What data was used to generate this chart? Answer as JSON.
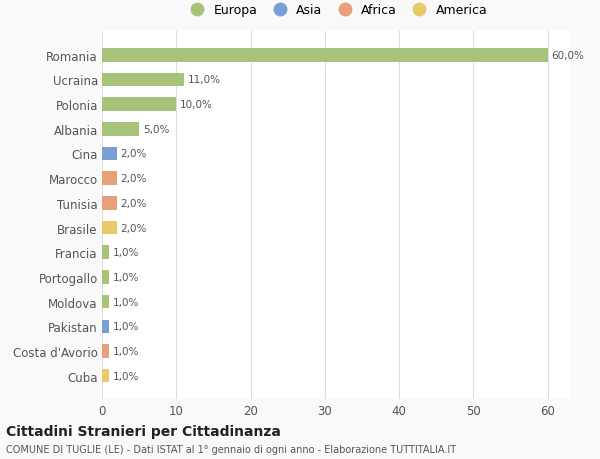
{
  "categories": [
    "Cuba",
    "Costa d'Avorio",
    "Pakistan",
    "Moldova",
    "Portogallo",
    "Francia",
    "Brasile",
    "Tunisia",
    "Marocco",
    "Cina",
    "Albania",
    "Polonia",
    "Ucraina",
    "Romania"
  ],
  "values": [
    1.0,
    1.0,
    1.0,
    1.0,
    1.0,
    1.0,
    2.0,
    2.0,
    2.0,
    2.0,
    5.0,
    10.0,
    11.0,
    60.0
  ],
  "labels": [
    "1,0%",
    "1,0%",
    "1,0%",
    "1,0%",
    "1,0%",
    "1,0%",
    "2,0%",
    "2,0%",
    "2,0%",
    "2,0%",
    "5,0%",
    "10,0%",
    "11,0%",
    "60,0%"
  ],
  "colors": [
    "#e8c96b",
    "#e8a07a",
    "#7a9fd4",
    "#a8c47a",
    "#a8c47a",
    "#a8c47a",
    "#e8c96b",
    "#e8a07a",
    "#e8a07a",
    "#7a9fd4",
    "#a8c47a",
    "#a8c47a",
    "#a8c47a",
    "#a8c47a"
  ],
  "continent": [
    "America",
    "Africa",
    "Asia",
    "Europa",
    "Europa",
    "Europa",
    "America",
    "Africa",
    "Africa",
    "Asia",
    "Europa",
    "Europa",
    "Europa",
    "Europa"
  ],
  "legend_labels": [
    "Europa",
    "Asia",
    "Africa",
    "America"
  ],
  "legend_colors": [
    "#a8c47a",
    "#7a9fd4",
    "#e8a07a",
    "#e8c96b"
  ],
  "title_main": "Cittadini Stranieri per Cittadinanza",
  "title_sub": "COMUNE DI TUGLIE (LE) - Dati ISTAT al 1° gennaio di ogni anno - Elaborazione TUTTITALIA.IT",
  "xlim": [
    0,
    63
  ],
  "xticks": [
    0,
    10,
    20,
    30,
    40,
    50,
    60
  ],
  "bg_color": "#f9f9f9",
  "plot_bg_color": "#ffffff",
  "grid_color": "#dddddd",
  "text_color": "#555555",
  "bar_height": 0.55
}
